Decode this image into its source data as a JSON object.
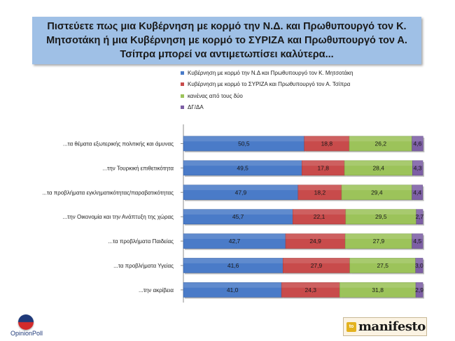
{
  "chart_data": {
    "type": "bar",
    "stacked": true,
    "orientation": "horizontal",
    "title": "Πιστεύετε πως μια Κυβέρνηση με κορμό την Ν.Δ. και Πρωθυπουργό τον Κ. Μητσοτάκη ή μια Κυβέρνηση με κορμό το ΣΥΡΙΖΑ και Πρωθυπουργό τον Α. Τσίπρα μπορεί να αντιμετωπίσει καλύτερα...",
    "categories": [
      "...τα θέματα εξωτερικής πολιτικής και άμυνας",
      "...την Τουρκική επιθετικότητα",
      "...τα προβλήματα εγκληματικότητας/παραβατικότητας",
      "...την Οικονομία και την Ανάπτυξη της χώρας",
      "...τα προβλήματα Παιδείας",
      "...τα προβλήματα Υγείας",
      "...την ακρίβεια"
    ],
    "series": [
      {
        "name": "Κυβέρνηση με κορμό την Ν.Δ και Πρωθυπουργό τον Κ. Μητσοτάκη",
        "color": "#4a7bc8",
        "values": [
          50.5,
          49.5,
          47.9,
          45.7,
          42.7,
          41.6,
          41.0
        ]
      },
      {
        "name": "Κυβέρνηση με κορμό το ΣΥΡΙΖΑ και Πρωθυπουργό τον Α. Τσίπρα",
        "color": "#c84b4b",
        "values": [
          18.8,
          17.8,
          18.2,
          22.1,
          24.9,
          27.9,
          24.3
        ]
      },
      {
        "name": "κανένας από τους δύο",
        "color": "#9cc35a",
        "values": [
          26.2,
          28.4,
          29.4,
          29.5,
          27.9,
          27.5,
          31.8
        ]
      },
      {
        "name": "ΔΓ/ΔΑ",
        "color": "#7d5fa5",
        "values": [
          4.6,
          4.3,
          4.4,
          2.7,
          4.5,
          3.0,
          2.9
        ]
      }
    ],
    "value_labels": [
      [
        "50,5",
        "18,8",
        "26,2",
        "4,6"
      ],
      [
        "49,5",
        "17,8",
        "28,4",
        "4,3"
      ],
      [
        "47,9",
        "18,2",
        "29,4",
        "4,4"
      ],
      [
        "45,7",
        "22,1",
        "29,5",
        "2,7"
      ],
      [
        "42,7",
        "24,9",
        "27,9",
        "4,5"
      ],
      [
        "41,6",
        "27,9",
        "27,5",
        "3,0"
      ],
      [
        "41,0",
        "24,3",
        "31,8",
        "2,9"
      ]
    ],
    "xlim": [
      0,
      100
    ],
    "legend": "top"
  },
  "branding": {
    "opinion_poll": "OpinionPoll",
    "manifesto_badge": "to",
    "manifesto_name": "manifesto"
  }
}
